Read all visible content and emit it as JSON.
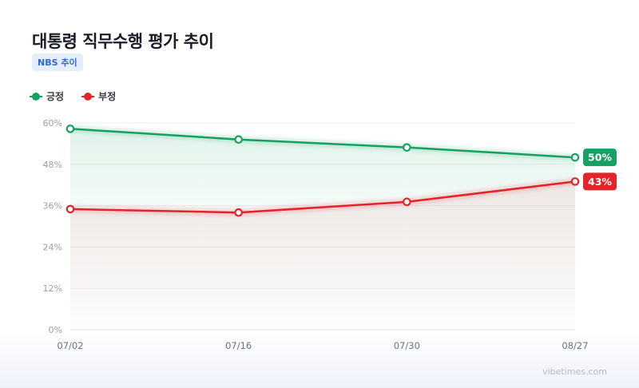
{
  "header": {
    "title": "대통령 직무수행 평가 추이",
    "badge": "NBS 추이"
  },
  "footer": {
    "watermark": "vibetimes.com"
  },
  "colors": {
    "positive": "#16a163",
    "negative": "#e0262a",
    "badge_bg": "#e6eefc",
    "badge_text": "#2f66d8"
  },
  "chart_data": {
    "type": "line",
    "title": "대통령 직무수행 평가 추이",
    "categories": [
      "07/02",
      "07/16",
      "07/30",
      "08/27"
    ],
    "y_ticks": [
      "0%",
      "12%",
      "24%",
      "36%",
      "48%",
      "60%"
    ],
    "ylim": [
      0,
      60
    ],
    "grid": true,
    "legend_position": "top-left",
    "series": [
      {
        "name": "긍정",
        "values": [
          58.3,
          55.2,
          52.9,
          50
        ],
        "end_label": "50%",
        "color": "#16a163"
      },
      {
        "name": "부정",
        "values": [
          35.0,
          34.0,
          37.1,
          43
        ],
        "end_label": "43%",
        "color": "#e0262a"
      }
    ]
  }
}
